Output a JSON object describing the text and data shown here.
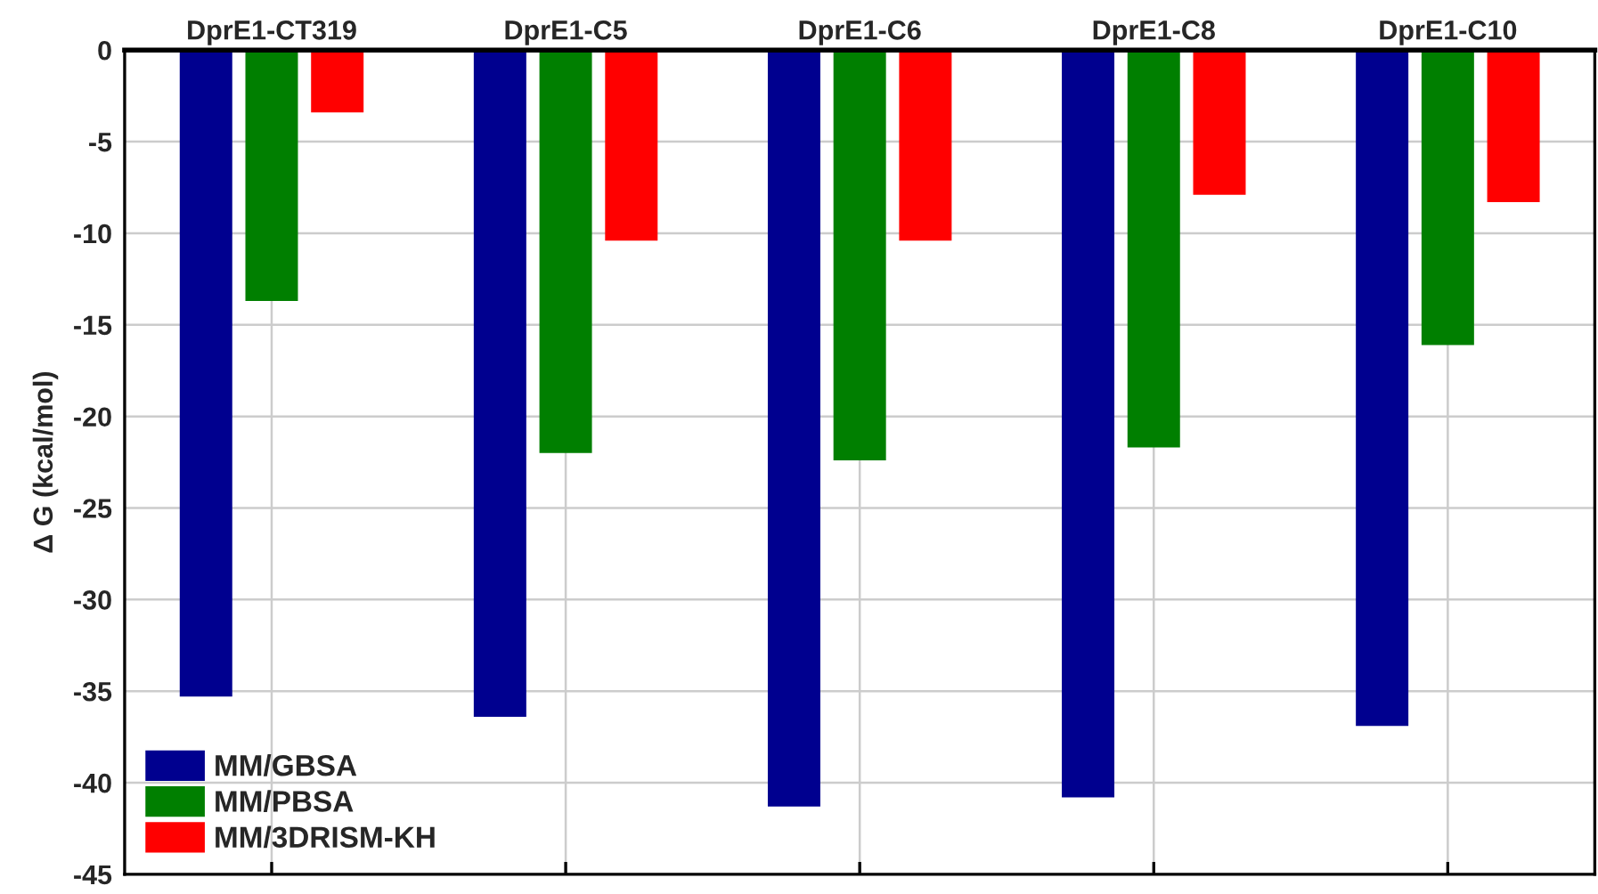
{
  "chart_data": {
    "type": "bar",
    "categories": [
      "DprE1-CT319",
      "DprE1-C5",
      "DprE1-C6",
      "DprE1-C8",
      "DprE1-C10"
    ],
    "ylabel": "Δ G (kcal/mol)",
    "ylim": [
      -45,
      0
    ],
    "yticks": [
      -45,
      -40,
      -35,
      -30,
      -25,
      -20,
      -15,
      -10,
      -5,
      0
    ],
    "series": [
      {
        "name": "MM/GBSA",
        "color": "#00008f",
        "values": [
          -35.3,
          -36.4,
          -41.3,
          -40.8,
          -36.9
        ]
      },
      {
        "name": "MM/PBSA",
        "color": "#007f00",
        "values": [
          -13.7,
          -22.0,
          -22.4,
          -21.7,
          -16.1
        ]
      },
      {
        "name": "MM/3DRISM-KH",
        "color": "#ff0000",
        "values": [
          -3.4,
          -10.4,
          -10.4,
          -7.9,
          -8.3
        ]
      }
    ],
    "grid": true,
    "legend": "bottom left"
  }
}
